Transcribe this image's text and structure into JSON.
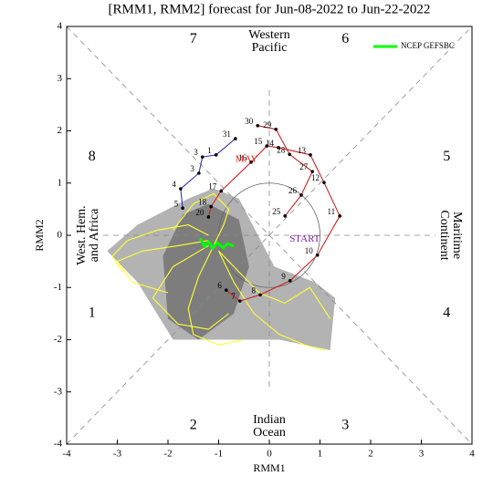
{
  "chart_data": {
    "type": "phase",
    "title": "[RMM1, RMM2] forecast for Jun-08-2022 to Jun-22-2022",
    "x_label": "RMM1",
    "y_label": "RMM2",
    "xlim": [
      -4,
      4
    ],
    "ylim": [
      -4,
      4
    ],
    "xticks": [
      -4,
      -3,
      -2,
      -1,
      0,
      1,
      2,
      3,
      4
    ],
    "yticks": [
      -4,
      -3,
      -2,
      -1,
      0,
      1,
      2,
      3,
      4
    ],
    "phase_labels": [
      "1",
      "2",
      "3",
      "4",
      "5",
      "6",
      "7",
      "8"
    ],
    "regions": {
      "top": [
        "Western",
        "Pacific"
      ],
      "bottom": [
        "Indian",
        "Ocean"
      ],
      "left": [
        "West. Hem.",
        "and Africa"
      ],
      "right": [
        "Maritime",
        "Continent"
      ]
    },
    "annotations": [
      {
        "text": "MAY",
        "color": "#dd2222"
      },
      {
        "text": "START",
        "color": "#7a1fa2"
      }
    ],
    "legend": "upper right",
    "spread": [
      {
        "color": "#b3b3b3",
        "x": [
          -3.2,
          -2.6,
          -1.6,
          -1.1,
          -0.6,
          0.1,
          0.9,
          1.3,
          1.2,
          0.2,
          -1.9,
          -2.6
        ],
        "values": [
          -0.3,
          0.2,
          0.7,
          0.9,
          0.7,
          -0.6,
          -0.9,
          -1.2,
          -2.2,
          -2.0,
          -2.0,
          -0.9
        ]
      },
      {
        "color": "#7d7d7d",
        "x": [
          -2.1,
          -1.7,
          -1.2,
          -0.6,
          -0.4,
          -0.7,
          -1.4,
          -2.0
        ],
        "values": [
          -0.4,
          0.4,
          0.6,
          0.3,
          -0.6,
          -1.5,
          -2.0,
          -1.6
        ]
      }
    ],
    "members": [
      {
        "color": "#ffff33",
        "x": [
          -1.2,
          -1.8,
          -2.5,
          -3.0,
          -2.7,
          -2.0
        ],
        "values": [
          -0.1,
          -0.2,
          -0.3,
          -0.5,
          -0.9,
          -1.1
        ]
      },
      {
        "color": "#ffff33",
        "x": [
          -1.1,
          -1.4,
          -1.6,
          -1.5,
          -1.0,
          -0.5
        ],
        "values": [
          -0.2,
          -0.8,
          -1.4,
          -1.9,
          -2.1,
          -2.0
        ]
      },
      {
        "color": "#ffff33",
        "x": [
          -1.0,
          -0.6,
          -0.2,
          0.3,
          0.8,
          1.2
        ],
        "values": [
          -0.3,
          -0.7,
          -1.1,
          -1.3,
          -1.0,
          -1.6
        ]
      },
      {
        "color": "#ffff33",
        "x": [
          -1.2,
          -1.6,
          -2.2,
          -2.8,
          -3.1,
          -2.9
        ],
        "values": [
          0.0,
          0.2,
          0.1,
          -0.1,
          -0.4,
          -0.7
        ]
      },
      {
        "color": "#ffff33",
        "x": [
          -1.1,
          -0.9,
          -0.8,
          -1.1,
          -1.5,
          -1.9
        ],
        "values": [
          -0.2,
          0.2,
          0.5,
          0.8,
          0.6,
          0.1
        ]
      },
      {
        "color": "#ffff33",
        "x": [
          -1.0,
          -0.7,
          -0.3,
          0.2,
          0.7,
          1.1
        ],
        "values": [
          -0.3,
          -0.9,
          -1.5,
          -1.9,
          -2.1,
          -2.2
        ]
      },
      {
        "color": "#ffff33",
        "x": [
          -1.2,
          -1.9,
          -2.3,
          -1.8,
          -1.2,
          -0.8
        ],
        "values": [
          -0.2,
          -0.6,
          -1.2,
          -1.7,
          -1.8,
          -1.5
        ]
      }
    ],
    "observed": [
      {
        "color": "#cc2222",
        "labels": [
          "25",
          "26",
          "27",
          "28",
          "29",
          "30"
        ],
        "x": [
          0.31,
          0.63,
          0.85,
          0.4,
          0.13,
          -0.23
        ],
        "values": [
          0.37,
          0.77,
          1.22,
          1.55,
          2.03,
          2.1
        ]
      },
      {
        "color": "#3333bb",
        "labels": [
          "31",
          "1",
          "3",
          "3",
          "4",
          "5"
        ],
        "x": [
          -0.67,
          -1.05,
          -1.32,
          -1.39,
          -1.75,
          -1.71
        ],
        "values": [
          1.85,
          1.54,
          1.5,
          1.19,
          0.89,
          0.52
        ]
      },
      {
        "color": "#cc2222",
        "labels": [
          "6",
          "7",
          "8",
          "9",
          "10",
          "11",
          "12",
          "13",
          "14",
          "15",
          "16",
          "17",
          "18",
          "20"
        ],
        "x": [
          -0.85,
          -0.58,
          -0.18,
          0.41,
          0.95,
          1.39,
          1.08,
          0.81,
          0.18,
          -0.05,
          -0.36,
          -0.95,
          -1.15,
          -1.2
        ],
        "values": [
          -1.05,
          -1.26,
          -1.14,
          -0.87,
          -0.38,
          0.37,
          1.01,
          1.54,
          1.68,
          1.71,
          1.4,
          0.85,
          0.55,
          0.35
        ]
      }
    ],
    "series": [
      {
        "name": "NCEP GEFSBC",
        "color": "#00ff00",
        "x": [
          -1.35,
          -1.28,
          -1.2,
          -1.12,
          -1.02,
          -0.92,
          -0.82,
          -0.72
        ],
        "values": [
          -0.08,
          -0.22,
          -0.12,
          -0.25,
          -0.14,
          -0.24,
          -0.16,
          -0.2
        ]
      }
    ]
  }
}
